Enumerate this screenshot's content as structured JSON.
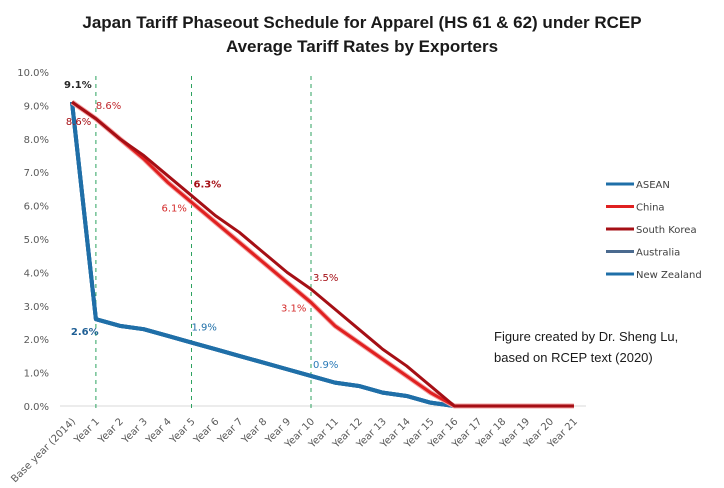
{
  "chart_data": {
    "type": "line",
    "title": "Japan Tariff Phaseout Schedule for Apparel (HS 61 & 62) under RCEP",
    "subtitle": "Average Tariff Rates by Exporters",
    "xlabel": "",
    "ylabel": "",
    "ylim": [
      0,
      10
    ],
    "y_ticks": [
      "0.0%",
      "1.0%",
      "2.0%",
      "3.0%",
      "4.0%",
      "5.0%",
      "6.0%",
      "7.0%",
      "8.0%",
      "9.0%",
      "10.0%"
    ],
    "grid": false,
    "legend_position": "right",
    "categories": [
      "Base year (2014)",
      "Year 1",
      "Year 2",
      "Year 3",
      "Year 4",
      "Year 5",
      "Year 6",
      "Year 7",
      "Year 8",
      "Year 9",
      "Year 10",
      "Year 11",
      "Year 12",
      "Year 13",
      "Year 14",
      "Year 15",
      "Year 16",
      "Year 17",
      "Year 18",
      "Year 19",
      "Year 20",
      "Year 21"
    ],
    "reference_lines": [
      "Year 1",
      "Year 5",
      "Year 10"
    ],
    "series": [
      {
        "name": "ASEAN",
        "color": "#1f6fa8",
        "values": [
          9.1,
          2.6,
          2.4,
          2.3,
          2.1,
          1.9,
          1.7,
          1.5,
          1.3,
          1.1,
          0.9,
          0.7,
          0.6,
          0.4,
          0.3,
          0.1,
          0,
          0,
          0,
          0,
          0,
          0
        ]
      },
      {
        "name": "China",
        "color": "#e02020",
        "values": [
          9.1,
          8.6,
          8.0,
          7.4,
          6.7,
          6.1,
          5.5,
          4.9,
          4.3,
          3.7,
          3.1,
          2.4,
          1.9,
          1.4,
          0.9,
          0.4,
          0,
          0,
          0,
          0,
          0,
          0
        ]
      },
      {
        "name": "South Korea",
        "color": "#a50f15",
        "values": [
          9.1,
          8.6,
          8.0,
          7.5,
          6.9,
          6.3,
          5.7,
          5.2,
          4.6,
          4.0,
          3.5,
          2.9,
          2.3,
          1.7,
          1.2,
          0.6,
          0,
          0,
          0,
          0,
          0,
          0
        ]
      },
      {
        "name": "Australia",
        "color": "#4a6a8f",
        "values": [
          9.1,
          2.6,
          2.4,
          2.3,
          2.1,
          1.9,
          1.7,
          1.5,
          1.3,
          1.1,
          0.9,
          0.7,
          0.6,
          0.4,
          0.3,
          0.1,
          0,
          0,
          0,
          0,
          0,
          0
        ]
      },
      {
        "name": "New Zealand",
        "color": "#1f6fa8",
        "values": [
          9.1,
          2.6,
          2.4,
          2.3,
          2.1,
          1.9,
          1.7,
          1.5,
          1.3,
          1.1,
          0.9,
          0.7,
          0.6,
          0.4,
          0.3,
          0.1,
          0,
          0,
          0,
          0,
          0,
          0
        ]
      }
    ],
    "annotations": [
      {
        "text": "9.1%",
        "series": "All",
        "category": "Base year (2014)",
        "color": "#262626"
      },
      {
        "text": "8.6%",
        "series": "South Korea",
        "category": "Year 1",
        "color": "#c0282d"
      },
      {
        "text": "8.6%",
        "series": "China",
        "category": "Year 1",
        "color": "#a50f15"
      },
      {
        "text": "6.3%",
        "series": "South Korea",
        "category": "Year 5",
        "color": "#a50f15"
      },
      {
        "text": "6.1%",
        "series": "China",
        "category": "Year 5",
        "color": "#d42a2a"
      },
      {
        "text": "3.5%",
        "series": "South Korea",
        "category": "Year 10",
        "color": "#a50f15"
      },
      {
        "text": "3.1%",
        "series": "China",
        "category": "Year 10",
        "color": "#d42a2a"
      },
      {
        "text": "2.6%",
        "series": "ASEAN",
        "category": "Year 1",
        "color": "#1f5f95"
      },
      {
        "text": "1.9%",
        "series": "ASEAN",
        "category": "Year 5",
        "color": "#1f6fa8"
      },
      {
        "text": "0.9%",
        "series": "ASEAN",
        "category": "Year 10",
        "color": "#2a7ab8"
      }
    ],
    "note": [
      "Figure created by Dr. Sheng Lu,",
      "based on RCEP text (2020)"
    ]
  }
}
